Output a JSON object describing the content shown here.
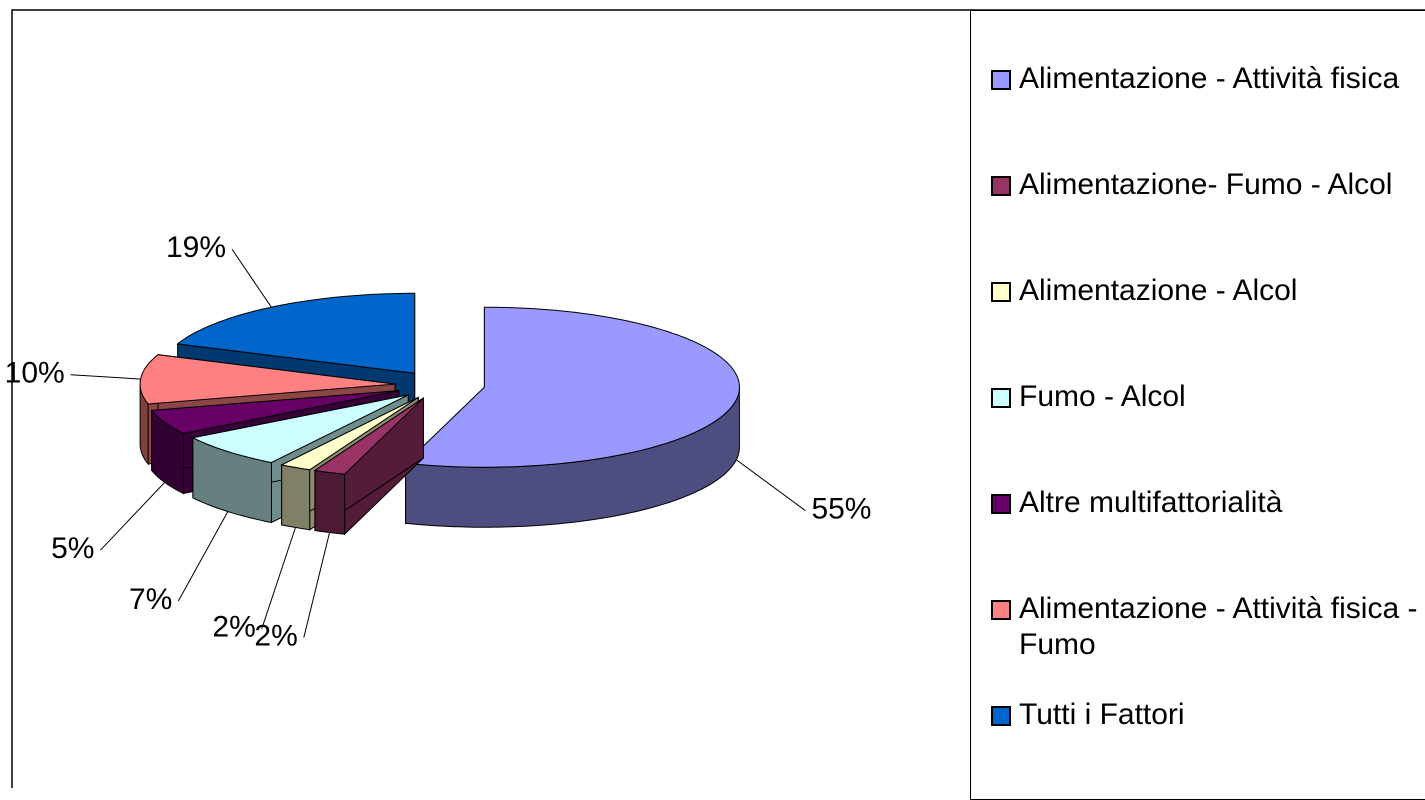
{
  "chart_data": {
    "type": "pie",
    "categories": [
      "Alimentazione - Attività fisica",
      "Alimentazione- Fumo - Alcol",
      "Alimentazione - Alcol",
      "Fumo - Alcol",
      "Altre multifattorialità",
      "Alimentazione - Attività fisica - Fumo",
      "Tutti i Fattori"
    ],
    "values": [
      55,
      2,
      2,
      7,
      5,
      10,
      19
    ],
    "value_labels": [
      "55%",
      "2%",
      "2%",
      "7%",
      "5%",
      "10%",
      "19%"
    ],
    "colors": [
      "#9999ff",
      "#993366",
      "#ffffcc",
      "#ccffff",
      "#660066",
      "#ff8080",
      "#0066cc"
    ],
    "legend": "right"
  }
}
